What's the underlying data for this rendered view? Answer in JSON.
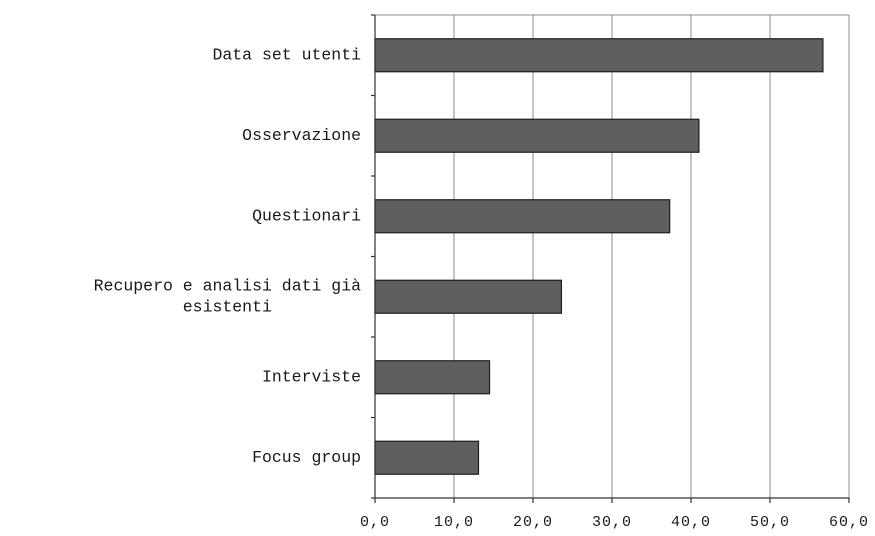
{
  "chart_data": {
    "type": "bar",
    "orientation": "horizontal",
    "categories": [
      "Data set utenti",
      "Osservazione",
      "Questionari",
      [
        "Recupero e analisi dati già",
        "esistenti"
      ],
      "Interviste",
      "Focus group"
    ],
    "values": [
      56.7,
      41.0,
      37.3,
      23.6,
      14.5,
      13.1
    ],
    "xlim": [
      0,
      60
    ],
    "xticks": [
      0,
      10,
      20,
      30,
      40,
      50,
      60
    ],
    "xtick_labels": [
      "0,0",
      "10,0",
      "20,0",
      "30,0",
      "40,0",
      "50,0",
      "60,0"
    ],
    "grid": "vertical",
    "legend": "none",
    "bar_color": "#5f5f5f",
    "title": "",
    "xlabel": "",
    "ylabel": ""
  }
}
